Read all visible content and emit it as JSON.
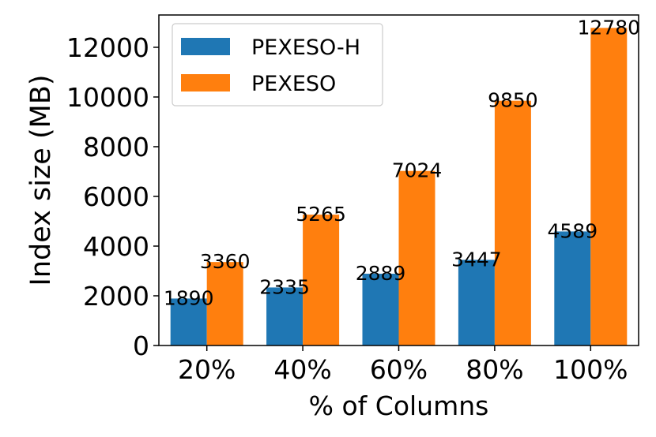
{
  "chart_data": {
    "type": "bar",
    "xlabel": "% of Columns",
    "ylabel": "Index size (MB)",
    "categories": [
      "20%",
      "40%",
      "60%",
      "80%",
      "100%"
    ],
    "series": [
      {
        "name": "PEXESO-H",
        "color": "#1f77b4",
        "values": [
          1890,
          2335,
          2889,
          3447,
          4589
        ]
      },
      {
        "name": "PEXESO",
        "color": "#ff7f0e",
        "values": [
          3360,
          5265,
          7024,
          9850,
          12780
        ]
      }
    ],
    "ylim": [
      0,
      13300
    ],
    "yticks": [
      0,
      2000,
      4000,
      6000,
      8000,
      10000,
      12000
    ],
    "legend_position": "top-left",
    "grid": false
  }
}
